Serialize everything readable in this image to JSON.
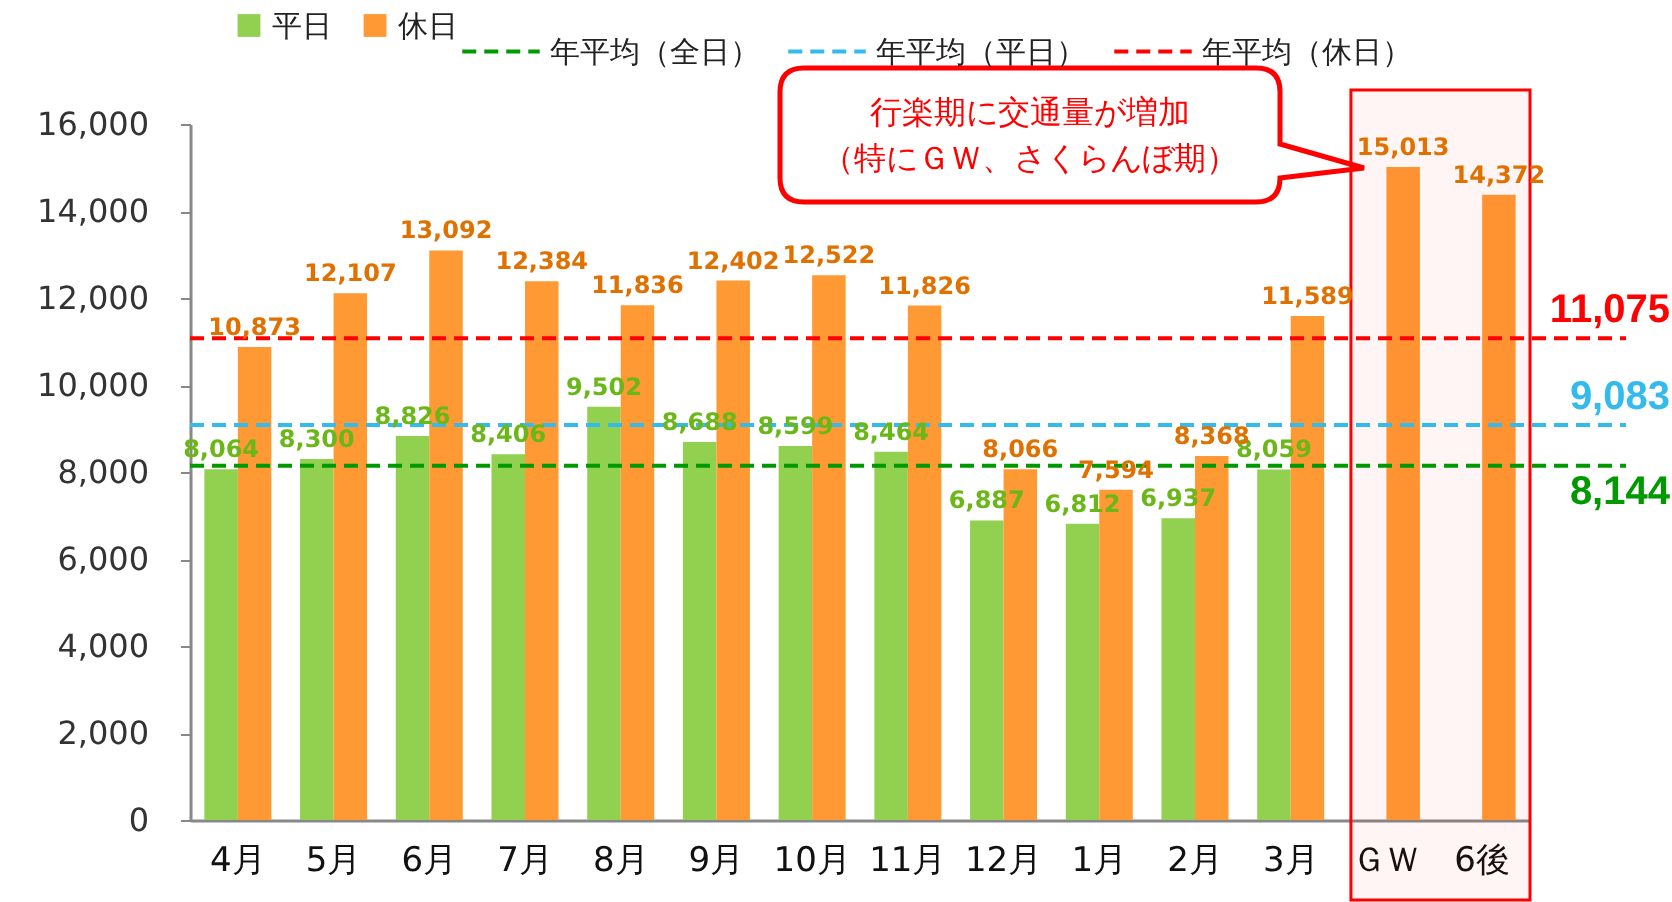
{
  "chart_data": {
    "type": "bar",
    "categories": [
      "4月",
      "5月",
      "6月",
      "7月",
      "8月",
      "9月",
      "10月",
      "11月",
      "12月",
      "1月",
      "2月",
      "3月",
      "ＧＷ",
      "6後"
    ],
    "series": [
      {
        "name": "平日",
        "color": "#92d050",
        "values": [
          8064,
          8300,
          8826,
          8406,
          9502,
          8688,
          8599,
          8464,
          6887,
          6812,
          6937,
          8059,
          null,
          null
        ],
        "value_labels": [
          "8,064",
          "8,300",
          "8,826",
          "8,406",
          "9,502",
          "8,688",
          "8,599",
          "8,464",
          "6,887",
          "6,812",
          "6,937",
          "8,059",
          null,
          null
        ]
      },
      {
        "name": "休日",
        "color": "#ff9933",
        "values": [
          10873,
          12107,
          13092,
          12384,
          11836,
          12402,
          12522,
          11826,
          8066,
          7594,
          8368,
          11589,
          15013,
          14372
        ],
        "value_labels": [
          "10,873",
          "12,107",
          "13,092",
          "12,384",
          "11,836",
          "12,402",
          "12,522",
          "11,826",
          "8,066",
          "7,594",
          "8,368",
          "11,589",
          "15,013",
          "14,372"
        ]
      }
    ],
    "ylim": [
      0,
      16000
    ],
    "yticks": [
      0,
      {
        "value": 2000,
        "label": "2,000"
      },
      {
        "value": 4000,
        "label": "4,000"
      },
      {
        "value": 6000,
        "label": "6,000"
      },
      {
        "value": 8000,
        "label": "8,000"
      },
      {
        "value": 10000,
        "label": "10,000"
      },
      {
        "value": 12000,
        "label": "12,000"
      },
      {
        "value": 14000,
        "label": "14,000"
      },
      {
        "value": 16000,
        "label": "16,000"
      }
    ],
    "legend": "top",
    "ref_lines": [
      {
        "axis": "y",
        "value": 8144,
        "label": "年平均（全日）",
        "color": "#009900",
        "line_style": "dashed"
      },
      {
        "axis": "y",
        "value": 9083,
        "label": "年平均（平日）",
        "color": "#33bbee",
        "line_style": "dashed"
      },
      {
        "axis": "y",
        "value": 11075,
        "label": "年平均（休日）",
        "color": "#ff0000",
        "line_style": "dashed"
      }
    ],
    "bands": [
      {
        "axis": "x",
        "from": "ＧＷ",
        "to": "6後",
        "color": "#ff0000"
      }
    ],
    "annotations": [
      "行楽期に交通量が増加",
      "（特にＧＷ、さくらんぼ期）",
      {
        "text": "11,075",
        "y": 11075
      },
      {
        "text": "9,083",
        "y": 9083
      },
      {
        "text": "8,144",
        "y": 8144
      }
    ]
  }
}
